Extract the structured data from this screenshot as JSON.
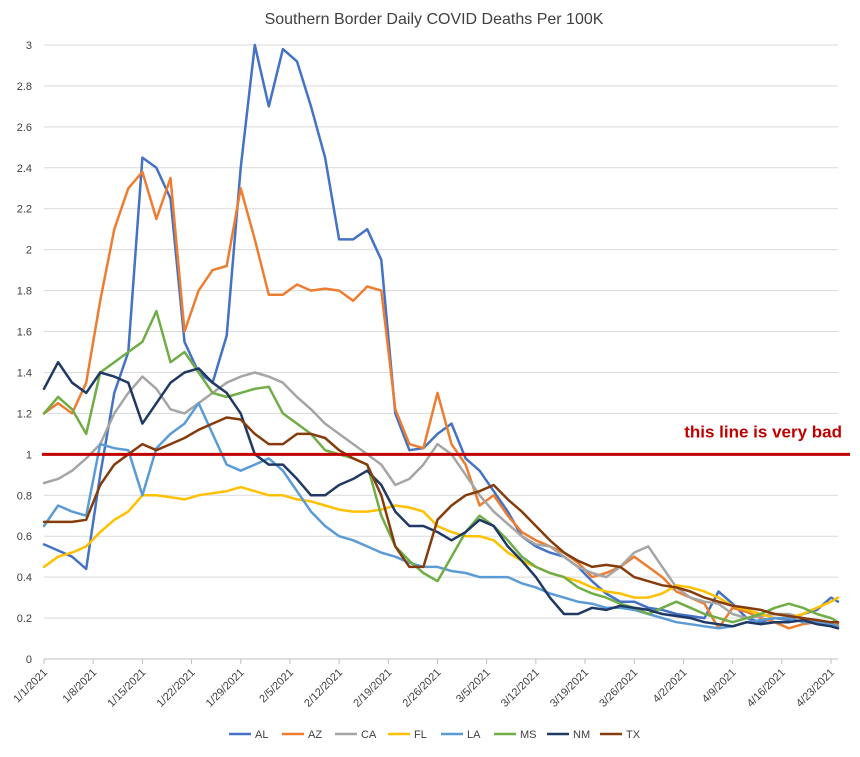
{
  "chart_data": {
    "type": "line",
    "title": "Southern Border Daily COVID Deaths Per 100K",
    "xlabel": "",
    "ylabel": "",
    "ylim": [
      0,
      3
    ],
    "y_ticks": [
      "0",
      "0.2",
      "0.4",
      "0.6",
      "0.8",
      "1",
      "1.2",
      "1.4",
      "1.6",
      "1.8",
      "2",
      "2.2",
      "2.4",
      "2.6",
      "2.8",
      "3"
    ],
    "x_tick_labels": [
      "1/1/2021",
      "1/8/2021",
      "1/15/2021",
      "1/22/2021",
      "1/29/2021",
      "2/5/2021",
      "2/12/2021",
      "2/19/2021",
      "2/26/2021",
      "3/5/2021",
      "3/12/2021",
      "3/19/2021",
      "3/26/2021",
      "4/2/2021",
      "4/9/2021",
      "4/16/2021",
      "4/23/2021"
    ],
    "grid": "horizontal",
    "legend_position": "bottom",
    "reference_line": {
      "value": 1,
      "label": "this line is very bad",
      "color": "#c00000"
    },
    "x": [
      "1/1/2021",
      "1/3/2021",
      "1/5/2021",
      "1/7/2021",
      "1/9/2021",
      "1/11/2021",
      "1/13/2021",
      "1/15/2021",
      "1/17/2021",
      "1/19/2021",
      "1/21/2021",
      "1/23/2021",
      "1/25/2021",
      "1/27/2021",
      "1/29/2021",
      "1/31/2021",
      "2/2/2021",
      "2/4/2021",
      "2/6/2021",
      "2/8/2021",
      "2/10/2021",
      "2/12/2021",
      "2/14/2021",
      "2/16/2021",
      "2/18/2021",
      "2/20/2021",
      "2/22/2021",
      "2/24/2021",
      "2/26/2021",
      "2/28/2021",
      "3/2/2021",
      "3/4/2021",
      "3/6/2021",
      "3/8/2021",
      "3/10/2021",
      "3/12/2021",
      "3/14/2021",
      "3/16/2021",
      "3/18/2021",
      "3/20/2021",
      "3/22/2021",
      "3/24/2021",
      "3/26/2021",
      "3/28/2021",
      "3/30/2021",
      "4/1/2021",
      "4/3/2021",
      "4/5/2021",
      "4/7/2021",
      "4/9/2021",
      "4/11/2021",
      "4/13/2021",
      "4/15/2021",
      "4/17/2021",
      "4/19/2021",
      "4/21/2021",
      "4/23/2021",
      "4/24/2021"
    ],
    "series": [
      {
        "name": "AL",
        "color": "#4472c4",
        "values": [
          0.56,
          0.53,
          0.5,
          0.44,
          0.9,
          1.3,
          1.5,
          2.45,
          2.4,
          2.25,
          1.55,
          1.4,
          1.35,
          1.58,
          2.4,
          3.0,
          2.7,
          2.98,
          2.92,
          2.7,
          2.45,
          2.05,
          2.05,
          2.1,
          1.95,
          1.2,
          1.02,
          1.03,
          1.1,
          1.15,
          0.98,
          0.92,
          0.82,
          0.72,
          0.6,
          0.55,
          0.52,
          0.5,
          0.45,
          0.38,
          0.32,
          0.28,
          0.28,
          0.25,
          0.24,
          0.22,
          0.21,
          0.2,
          0.33,
          0.27,
          0.2,
          0.18,
          0.2,
          0.19,
          0.22,
          0.24,
          0.3,
          0.28
        ]
      },
      {
        "name": "AZ",
        "color": "#ed7d31",
        "values": [
          1.2,
          1.25,
          1.2,
          1.35,
          1.75,
          2.1,
          2.3,
          2.38,
          2.15,
          2.35,
          1.6,
          1.8,
          1.9,
          1.92,
          2.3,
          2.05,
          1.78,
          1.78,
          1.83,
          1.8,
          1.81,
          1.8,
          1.75,
          1.82,
          1.8,
          1.22,
          1.05,
          1.03,
          1.3,
          1.05,
          0.95,
          0.75,
          0.8,
          0.7,
          0.62,
          0.58,
          0.55,
          0.52,
          0.47,
          0.4,
          0.42,
          0.45,
          0.5,
          0.45,
          0.4,
          0.33,
          0.3,
          0.27,
          0.15,
          0.25,
          0.23,
          0.2,
          0.18,
          0.15,
          0.17,
          0.18,
          0.16,
          0.17
        ]
      },
      {
        "name": "CA",
        "color": "#a5a5a5",
        "values": [
          0.86,
          0.88,
          0.92,
          0.98,
          1.05,
          1.2,
          1.3,
          1.38,
          1.32,
          1.22,
          1.2,
          1.25,
          1.3,
          1.35,
          1.38,
          1.4,
          1.38,
          1.35,
          1.28,
          1.22,
          1.15,
          1.1,
          1.05,
          1.0,
          0.95,
          0.85,
          0.88,
          0.95,
          1.05,
          1.0,
          0.9,
          0.8,
          0.72,
          0.66,
          0.6,
          0.56,
          0.55,
          0.5,
          0.45,
          0.42,
          0.4,
          0.45,
          0.52,
          0.55,
          0.45,
          0.35,
          0.3,
          0.28,
          0.27,
          0.22,
          0.2,
          0.21,
          0.22,
          0.22,
          0.2,
          0.18,
          0.17,
          0.16
        ]
      },
      {
        "name": "FL",
        "color": "#ffc000",
        "values": [
          0.45,
          0.5,
          0.52,
          0.55,
          0.62,
          0.68,
          0.72,
          0.8,
          0.8,
          0.79,
          0.78,
          0.8,
          0.81,
          0.82,
          0.84,
          0.82,
          0.8,
          0.8,
          0.78,
          0.77,
          0.75,
          0.73,
          0.72,
          0.72,
          0.73,
          0.75,
          0.74,
          0.72,
          0.65,
          0.62,
          0.6,
          0.6,
          0.58,
          0.52,
          0.48,
          0.45,
          0.42,
          0.4,
          0.38,
          0.35,
          0.33,
          0.32,
          0.3,
          0.3,
          0.32,
          0.36,
          0.35,
          0.33,
          0.3,
          0.26,
          0.24,
          0.22,
          0.2,
          0.2,
          0.22,
          0.25,
          0.28,
          0.3
        ]
      },
      {
        "name": "LA",
        "color": "#5b9bd5",
        "values": [
          0.65,
          0.75,
          0.72,
          0.7,
          1.05,
          1.03,
          1.02,
          0.8,
          1.03,
          1.1,
          1.15,
          1.25,
          1.1,
          0.95,
          0.92,
          0.95,
          0.98,
          0.92,
          0.82,
          0.72,
          0.65,
          0.6,
          0.58,
          0.55,
          0.52,
          0.5,
          0.47,
          0.45,
          0.45,
          0.43,
          0.42,
          0.4,
          0.4,
          0.4,
          0.37,
          0.35,
          0.32,
          0.3,
          0.28,
          0.27,
          0.25,
          0.25,
          0.24,
          0.22,
          0.2,
          0.18,
          0.17,
          0.16,
          0.15,
          0.16,
          0.18,
          0.19,
          0.2,
          0.2,
          0.18,
          0.18,
          0.17,
          0.16
        ]
      },
      {
        "name": "MS",
        "color": "#70ad47",
        "values": [
          1.2,
          1.28,
          1.22,
          1.1,
          1.4,
          1.45,
          1.5,
          1.55,
          1.7,
          1.45,
          1.5,
          1.4,
          1.3,
          1.28,
          1.3,
          1.32,
          1.33,
          1.2,
          1.15,
          1.1,
          1.02,
          1.0,
          0.98,
          0.95,
          0.7,
          0.55,
          0.48,
          0.42,
          0.38,
          0.5,
          0.62,
          0.7,
          0.65,
          0.58,
          0.5,
          0.45,
          0.42,
          0.4,
          0.35,
          0.32,
          0.3,
          0.27,
          0.25,
          0.22,
          0.25,
          0.28,
          0.25,
          0.22,
          0.2,
          0.18,
          0.2,
          0.22,
          0.25,
          0.27,
          0.25,
          0.22,
          0.2,
          0.18
        ]
      },
      {
        "name": "NM",
        "color": "#1f3864",
        "values": [
          1.32,
          1.45,
          1.35,
          1.3,
          1.4,
          1.38,
          1.35,
          1.15,
          1.25,
          1.35,
          1.4,
          1.42,
          1.35,
          1.3,
          1.2,
          1.0,
          0.95,
          0.95,
          0.88,
          0.8,
          0.8,
          0.85,
          0.88,
          0.92,
          0.85,
          0.72,
          0.65,
          0.65,
          0.62,
          0.58,
          0.62,
          0.68,
          0.65,
          0.55,
          0.48,
          0.4,
          0.3,
          0.22,
          0.22,
          0.25,
          0.24,
          0.26,
          0.25,
          0.24,
          0.22,
          0.21,
          0.2,
          0.18,
          0.17,
          0.16,
          0.18,
          0.17,
          0.18,
          0.18,
          0.19,
          0.17,
          0.16,
          0.15
        ]
      },
      {
        "name": "TX",
        "color": "#843c0c",
        "values": [
          0.67,
          0.67,
          0.67,
          0.68,
          0.85,
          0.95,
          1.0,
          1.05,
          1.02,
          1.05,
          1.08,
          1.12,
          1.15,
          1.18,
          1.17,
          1.1,
          1.05,
          1.05,
          1.1,
          1.1,
          1.08,
          1.02,
          0.98,
          0.95,
          0.8,
          0.55,
          0.45,
          0.45,
          0.68,
          0.75,
          0.8,
          0.82,
          0.85,
          0.78,
          0.72,
          0.65,
          0.58,
          0.52,
          0.48,
          0.45,
          0.46,
          0.45,
          0.4,
          0.38,
          0.36,
          0.35,
          0.33,
          0.3,
          0.28,
          0.26,
          0.25,
          0.24,
          0.22,
          0.21,
          0.2,
          0.19,
          0.18,
          0.18
        ]
      }
    ]
  }
}
